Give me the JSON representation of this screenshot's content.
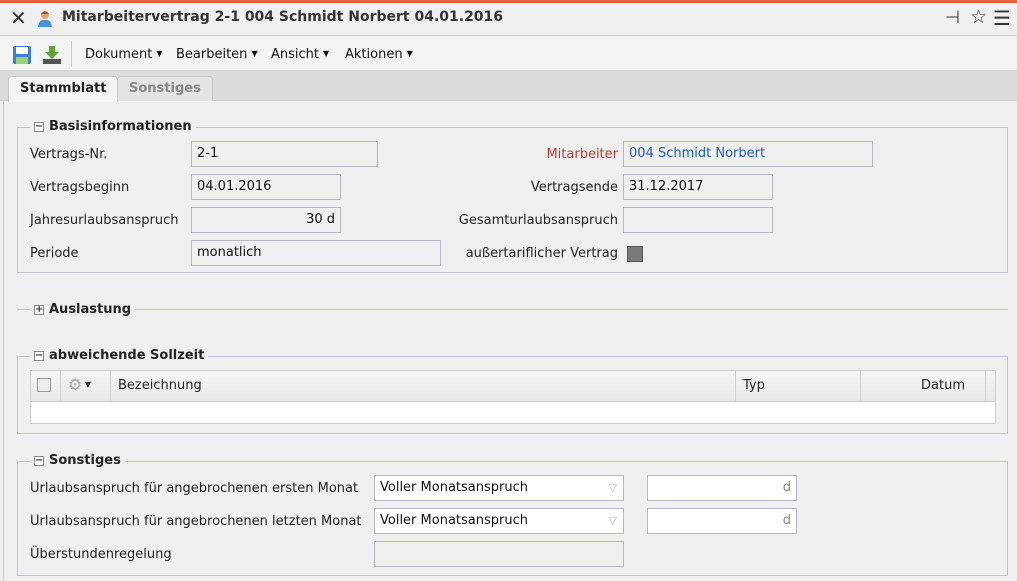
{
  "window": {
    "title": "Mitarbeitervertrag 2-1 004 Schmidt Norbert 04.01.2016",
    "accent": "#e5603b"
  },
  "toolbar": {
    "menus": [
      "Dokument",
      "Bearbeiten",
      "Ansicht",
      "Aktionen"
    ]
  },
  "tabs": [
    {
      "label": "Stammblatt",
      "active": true
    },
    {
      "label": "Sonstiges",
      "active": false
    }
  ],
  "basis": {
    "legend": "Basisinformationen",
    "vertragsnr_label": "Vertrags-Nr.",
    "vertragsnr": "2-1",
    "mitarbeiter_label": "Mitarbeiter",
    "mitarbeiter": "004 Schmidt Norbert",
    "beginn_label": "Vertragsbeginn",
    "beginn": "04.01.2016",
    "ende_label": "Vertragsende",
    "ende": "31.12.2017",
    "jahresurlaub_label": "Jahresurlaubsanspruch",
    "jahresurlaub": "30 d",
    "gesamturlaub_label": "Gesamturlaubsanspruch",
    "gesamturlaub": "",
    "periode_label": "Periode",
    "periode": "monatlich",
    "aussertariflich_label": "außertariflicher Vertrag",
    "aussertariflich": false
  },
  "auslastung": {
    "legend": "Auslastung"
  },
  "sollzeit": {
    "legend": "abweichende Sollzeit",
    "columns": [
      "Bezeichnung",
      "Typ",
      "Datum"
    ]
  },
  "sonstiges": {
    "legend": "Sonstiges",
    "erster_label": "Urlaubsanspruch für angebrochenen ersten Monat",
    "erster": "Voller Monatsanspruch",
    "erster_unit": "d",
    "letzter_label": "Urlaubsanspruch für angebrochenen letzten Monat",
    "letzter": "Voller Monatsanspruch",
    "letzter_unit": "d",
    "ueberstunden_label": "Überstundenregelung",
    "ueberstunden": ""
  }
}
